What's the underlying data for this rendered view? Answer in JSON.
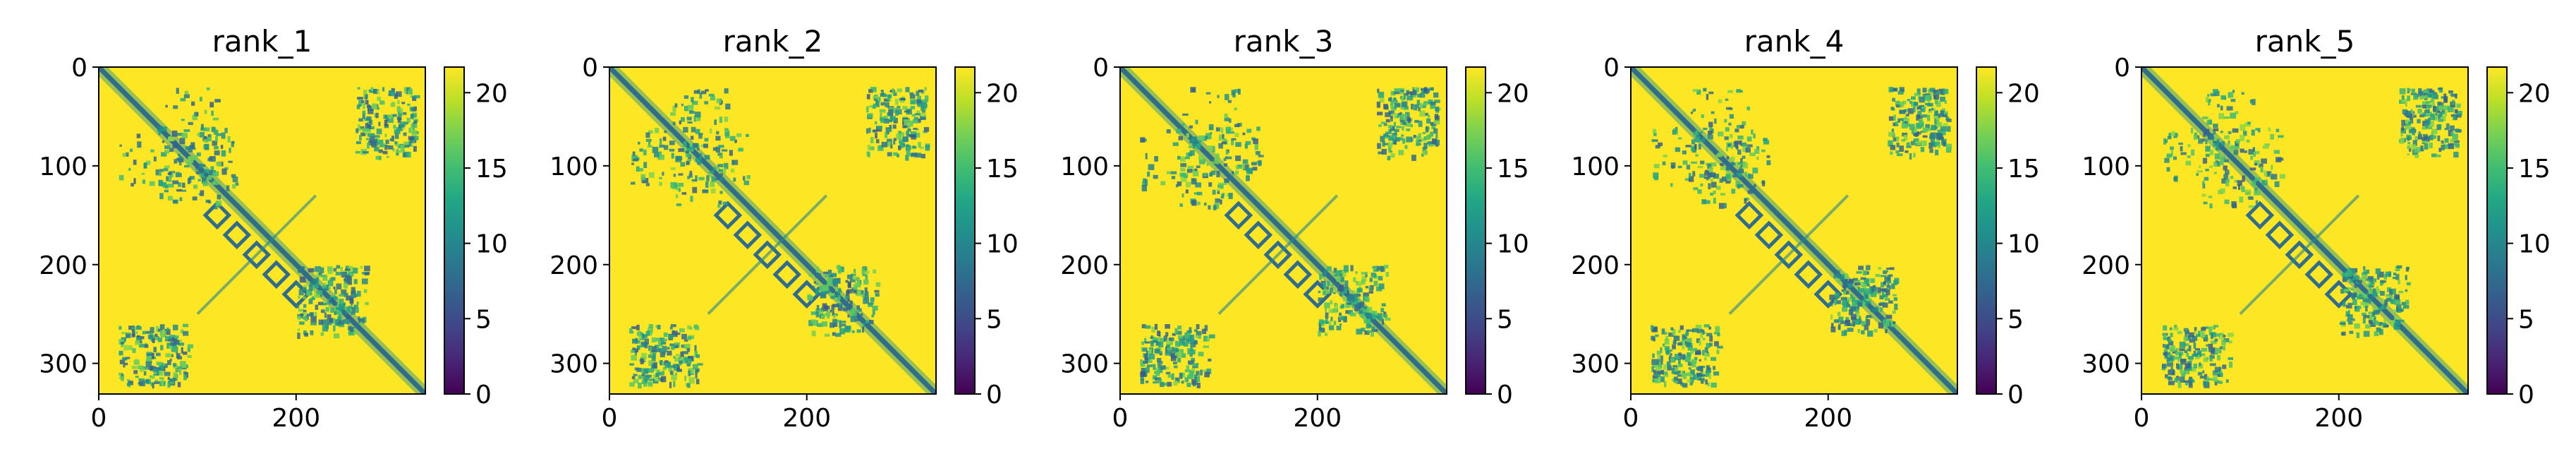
{
  "chart_data": [
    {
      "type": "heatmap",
      "title": "rank_1",
      "x_ticks": [
        "0",
        "200"
      ],
      "y_ticks": [
        "0",
        "100",
        "200",
        "300"
      ],
      "xlim": [
        0,
        331
      ],
      "ylim": [
        331,
        0
      ],
      "colorbar_ticks": [
        "0",
        "5",
        "10",
        "15",
        "20"
      ],
      "colorbar_range": [
        0,
        21.7
      ],
      "colormap": "viridis",
      "background_value": 21.7,
      "contacts": [
        {
          "kind": "diagonal",
          "from": 0,
          "to": 331
        },
        {
          "kind": "antidiagonal",
          "center": [
            160,
            190
          ],
          "length": 120
        },
        {
          "kind": "band",
          "rows": [
            60,
            120
          ],
          "cols": [
            20,
            140
          ]
        },
        {
          "kind": "band",
          "rows": [
            200,
            260
          ],
          "cols": [
            200,
            270
          ]
        },
        {
          "kind": "band",
          "rows": [
            260,
            320
          ],
          "cols": [
            20,
            90
          ]
        },
        {
          "kind": "band",
          "rows": [
            20,
            80
          ],
          "cols": [
            260,
            320
          ]
        }
      ]
    },
    {
      "type": "heatmap",
      "title": "rank_2",
      "x_ticks": [
        "0",
        "200"
      ],
      "y_ticks": [
        "0",
        "100",
        "200",
        "300"
      ],
      "xlim": [
        0,
        331
      ],
      "ylim": [
        331,
        0
      ],
      "colorbar_ticks": [
        "0",
        "5",
        "10",
        "15",
        "20"
      ],
      "colorbar_range": [
        0,
        21.7
      ],
      "colormap": "viridis",
      "background_value": 21.7,
      "contacts": [
        {
          "kind": "diagonal",
          "from": 0,
          "to": 331
        },
        {
          "kind": "antidiagonal",
          "center": [
            160,
            190
          ],
          "length": 120
        },
        {
          "kind": "band",
          "rows": [
            60,
            120
          ],
          "cols": [
            20,
            140
          ]
        },
        {
          "kind": "band",
          "rows": [
            200,
            260
          ],
          "cols": [
            200,
            270
          ]
        },
        {
          "kind": "band",
          "rows": [
            260,
            320
          ],
          "cols": [
            20,
            90
          ]
        },
        {
          "kind": "band",
          "rows": [
            20,
            80
          ],
          "cols": [
            260,
            320
          ]
        }
      ]
    },
    {
      "type": "heatmap",
      "title": "rank_3",
      "x_ticks": [
        "0",
        "200"
      ],
      "y_ticks": [
        "0",
        "100",
        "200",
        "300"
      ],
      "xlim": [
        0,
        331
      ],
      "ylim": [
        331,
        0
      ],
      "colorbar_ticks": [
        "0",
        "5",
        "10",
        "15",
        "20"
      ],
      "colorbar_range": [
        0,
        21.7
      ],
      "colormap": "viridis",
      "background_value": 21.7,
      "contacts": [
        {
          "kind": "diagonal",
          "from": 0,
          "to": 331
        },
        {
          "kind": "antidiagonal",
          "center": [
            160,
            190
          ],
          "length": 120
        },
        {
          "kind": "band",
          "rows": [
            60,
            120
          ],
          "cols": [
            20,
            140
          ]
        },
        {
          "kind": "band",
          "rows": [
            200,
            260
          ],
          "cols": [
            200,
            270
          ]
        },
        {
          "kind": "band",
          "rows": [
            260,
            320
          ],
          "cols": [
            20,
            90
          ]
        },
        {
          "kind": "band",
          "rows": [
            20,
            80
          ],
          "cols": [
            260,
            320
          ]
        }
      ]
    },
    {
      "type": "heatmap",
      "title": "rank_4",
      "x_ticks": [
        "0",
        "200"
      ],
      "y_ticks": [
        "0",
        "100",
        "200",
        "300"
      ],
      "xlim": [
        0,
        331
      ],
      "ylim": [
        331,
        0
      ],
      "colorbar_ticks": [
        "0",
        "5",
        "10",
        "15",
        "20"
      ],
      "colorbar_range": [
        0,
        21.7
      ],
      "colormap": "viridis",
      "background_value": 21.7,
      "contacts": [
        {
          "kind": "diagonal",
          "from": 0,
          "to": 331
        },
        {
          "kind": "antidiagonal",
          "center": [
            160,
            190
          ],
          "length": 120
        },
        {
          "kind": "band",
          "rows": [
            60,
            120
          ],
          "cols": [
            20,
            140
          ]
        },
        {
          "kind": "band",
          "rows": [
            200,
            260
          ],
          "cols": [
            200,
            270
          ]
        },
        {
          "kind": "band",
          "rows": [
            260,
            320
          ],
          "cols": [
            20,
            90
          ]
        },
        {
          "kind": "band",
          "rows": [
            20,
            80
          ],
          "cols": [
            260,
            320
          ]
        }
      ]
    },
    {
      "type": "heatmap",
      "title": "rank_5",
      "x_ticks": [
        "0",
        "200"
      ],
      "y_ticks": [
        "0",
        "100",
        "200",
        "300"
      ],
      "xlim": [
        0,
        331
      ],
      "ylim": [
        331,
        0
      ],
      "colorbar_ticks": [
        "0",
        "5",
        "10",
        "15",
        "20"
      ],
      "colorbar_range": [
        0,
        21.7
      ],
      "colormap": "viridis",
      "background_value": 21.7,
      "contacts": [
        {
          "kind": "diagonal",
          "from": 0,
          "to": 331
        },
        {
          "kind": "antidiagonal",
          "center": [
            160,
            190
          ],
          "length": 120
        },
        {
          "kind": "band",
          "rows": [
            60,
            120
          ],
          "cols": [
            20,
            140
          ]
        },
        {
          "kind": "band",
          "rows": [
            200,
            260
          ],
          "cols": [
            200,
            270
          ]
        },
        {
          "kind": "band",
          "rows": [
            260,
            320
          ],
          "cols": [
            20,
            90
          ]
        },
        {
          "kind": "band",
          "rows": [
            20,
            80
          ],
          "cols": [
            260,
            320
          ]
        }
      ]
    }
  ]
}
